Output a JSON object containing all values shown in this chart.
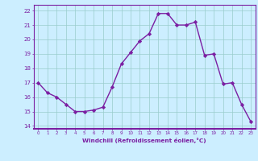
{
  "x": [
    0,
    1,
    2,
    3,
    4,
    5,
    6,
    7,
    8,
    9,
    10,
    11,
    12,
    13,
    14,
    15,
    16,
    17,
    18,
    19,
    20,
    21,
    22,
    23
  ],
  "y": [
    17.0,
    16.3,
    16.0,
    15.5,
    15.0,
    15.0,
    15.1,
    15.3,
    16.7,
    18.3,
    19.1,
    19.9,
    20.4,
    21.8,
    21.8,
    21.0,
    21.0,
    21.2,
    18.9,
    19.0,
    16.9,
    17.0,
    15.5,
    14.3
  ],
  "line_color": "#7B1FA2",
  "marker": "D",
  "marker_size": 2.2,
  "bg_color": "#cceeff",
  "grid_color": "#99cccc",
  "xlabel": "Windchill (Refroidissement éolien,°C)",
  "xlabel_color": "#7B1FA2",
  "tick_color": "#7B1FA2",
  "ylim": [
    13.8,
    22.4
  ],
  "xlim": [
    -0.5,
    23.5
  ],
  "yticks": [
    14,
    15,
    16,
    17,
    18,
    19,
    20,
    21,
    22
  ],
  "xticks": [
    0,
    1,
    2,
    3,
    4,
    5,
    6,
    7,
    8,
    9,
    10,
    11,
    12,
    13,
    14,
    15,
    16,
    17,
    18,
    19,
    20,
    21,
    22,
    23
  ],
  "spine_color": "#7B1FA2",
  "linewidth": 1.0
}
